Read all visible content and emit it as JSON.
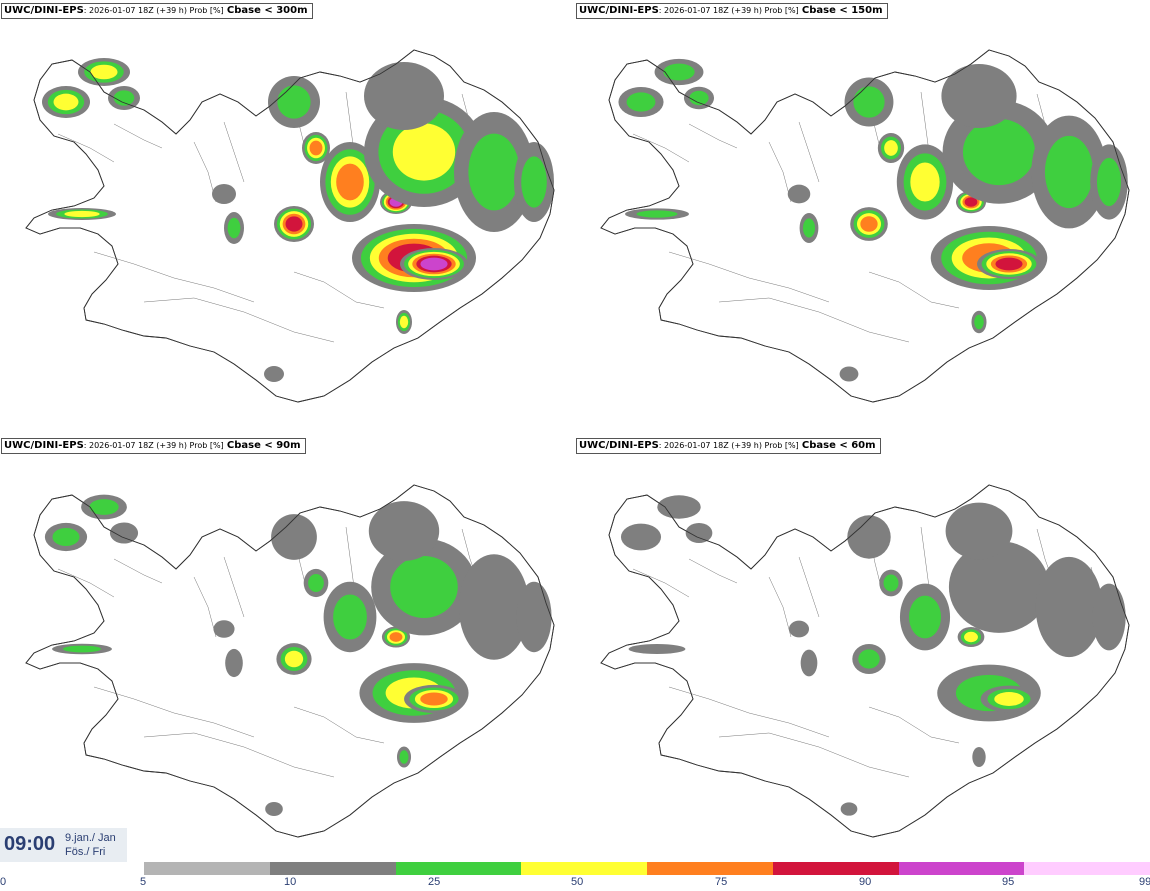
{
  "panels": [
    {
      "model": "UWC/DINI-EPS",
      "meta": ": 2026-01-07 18Z (+39 h) Prob [%]",
      "threshold": "Cbase < 300m"
    },
    {
      "model": "UWC/DINI-EPS",
      "meta": ": 2026-01-07 18Z (+39 h) Prob [%]",
      "threshold": "Cbase < 150m"
    },
    {
      "model": "UWC/DINI-EPS",
      "meta": ": 2026-01-07 18Z (+39 h) Prob [%]",
      "threshold": "Cbase < 90m"
    },
    {
      "model": "UWC/DINI-EPS",
      "meta": ": 2026-01-07 18Z (+39 h) Prob [%]",
      "threshold": "Cbase < 60m"
    }
  ],
  "time": {
    "clock": "09:00",
    "date_line1": "9.jan./ Jan",
    "date_line2": "Fös./ Fri"
  },
  "legend": {
    "ticks": [
      "0",
      "5",
      "10",
      "25",
      "50",
      "75",
      "90",
      "95",
      "99"
    ],
    "colors": [
      "#b4b4b4",
      "#7f7f7f",
      "#3fcf3f",
      "#ffff33",
      "#ff7f1f",
      "#d2143c",
      "#cc44cc",
      "#ffccff"
    ]
  },
  "panel_intensity": [
    1.0,
    0.8,
    0.6,
    0.45
  ]
}
